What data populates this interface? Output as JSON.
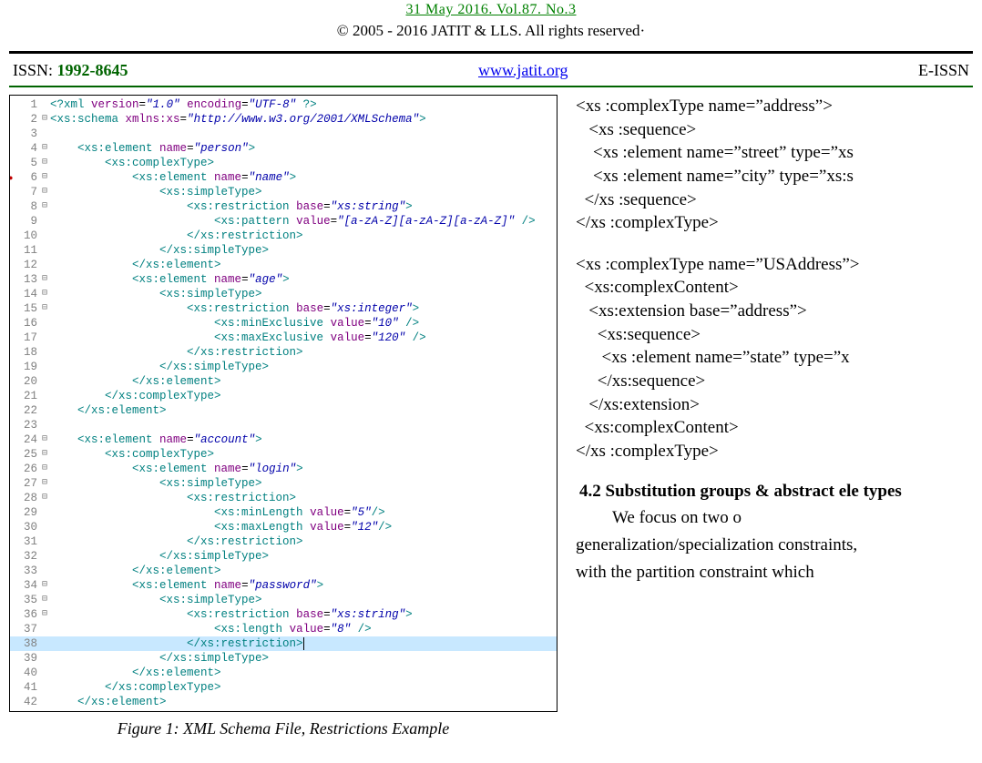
{
  "header": {
    "dateline": "31   May 2016. Vol.87. No.3",
    "copyright": "© 2005 - 2016 JATIT & LLS. All rights reserved·"
  },
  "info": {
    "issn_label": "ISSN:",
    "issn_value": "1992-8645",
    "link": "www.jatit.org",
    "eissn_label": "E-ISSN"
  },
  "code": {
    "caption": "Figure 1: XML Schema File, Restrictions Example",
    "highlight_line": 38,
    "breakpoints": [
      6
    ],
    "fold_lines": [
      2,
      4,
      5,
      6,
      7,
      8,
      13,
      14,
      15,
      24,
      25,
      26,
      27,
      28,
      34,
      35,
      36
    ],
    "lines": [
      {
        "n": 1,
        "seg": [
          [
            "decl",
            "<?xml"
          ],
          [
            " "
          ],
          [
            "attr",
            "version"
          ],
          [
            "=",
            ""
          ],
          [
            "str",
            "\"1.0\""
          ],
          [
            " "
          ],
          [
            "attr",
            "encoding"
          ],
          [
            "=",
            ""
          ],
          [
            "str",
            "\"UTF-8\""
          ],
          [
            " "
          ],
          [
            "decl",
            "?>"
          ]
        ]
      },
      {
        "n": 2,
        "seg": [
          [
            "tag",
            "<xs:schema"
          ],
          [
            " "
          ],
          [
            "attr",
            "xmlns:xs"
          ],
          [
            "=",
            ""
          ],
          [
            "str",
            "\"http://www.w3.org/2001/XMLSchema\""
          ],
          [
            "tag",
            ">"
          ]
        ]
      },
      {
        "n": 3,
        "seg": []
      },
      {
        "n": 4,
        "seg": [
          [
            "",
            "    "
          ],
          [
            "tag",
            "<xs:element"
          ],
          [
            " "
          ],
          [
            "attr",
            "name"
          ],
          [
            "=",
            ""
          ],
          [
            "str",
            "\"person\""
          ],
          [
            "tag",
            ">"
          ]
        ]
      },
      {
        "n": 5,
        "seg": [
          [
            "",
            "        "
          ],
          [
            "tag",
            "<xs:complexType>"
          ]
        ]
      },
      {
        "n": 6,
        "seg": [
          [
            "",
            "            "
          ],
          [
            "tag",
            "<xs:element"
          ],
          [
            " "
          ],
          [
            "attr",
            "name"
          ],
          [
            "=",
            ""
          ],
          [
            "str",
            "\"name\""
          ],
          [
            "tag",
            ">"
          ]
        ]
      },
      {
        "n": 7,
        "seg": [
          [
            "",
            "                "
          ],
          [
            "tag",
            "<xs:simpleType>"
          ]
        ]
      },
      {
        "n": 8,
        "seg": [
          [
            "",
            "                    "
          ],
          [
            "tag",
            "<xs:restriction"
          ],
          [
            " "
          ],
          [
            "attr",
            "base"
          ],
          [
            "=",
            ""
          ],
          [
            "str",
            "\"xs:string\""
          ],
          [
            "tag",
            ">"
          ]
        ]
      },
      {
        "n": 9,
        "seg": [
          [
            "",
            "                        "
          ],
          [
            "tag",
            "<xs:pattern"
          ],
          [
            " "
          ],
          [
            "attr",
            "value"
          ],
          [
            "=",
            ""
          ],
          [
            "str",
            "\"[a-zA-Z][a-zA-Z][a-zA-Z]\""
          ],
          [
            " "
          ],
          [
            "tag",
            "/>"
          ]
        ]
      },
      {
        "n": 10,
        "seg": [
          [
            "",
            "                    "
          ],
          [
            "tag",
            "</xs:restriction>"
          ]
        ]
      },
      {
        "n": 11,
        "seg": [
          [
            "",
            "                "
          ],
          [
            "tag",
            "</xs:simpleType>"
          ]
        ]
      },
      {
        "n": 12,
        "seg": [
          [
            "",
            "            "
          ],
          [
            "tag",
            "</xs:element>"
          ]
        ]
      },
      {
        "n": 13,
        "seg": [
          [
            "",
            "            "
          ],
          [
            "tag",
            "<xs:element"
          ],
          [
            " "
          ],
          [
            "attr",
            "name"
          ],
          [
            "=",
            ""
          ],
          [
            "str",
            "\"age\""
          ],
          [
            "tag",
            ">"
          ]
        ]
      },
      {
        "n": 14,
        "seg": [
          [
            "",
            "                "
          ],
          [
            "tag",
            "<xs:simpleType>"
          ]
        ]
      },
      {
        "n": 15,
        "seg": [
          [
            "",
            "                    "
          ],
          [
            "tag",
            "<xs:restriction"
          ],
          [
            " "
          ],
          [
            "attr",
            "base"
          ],
          [
            "=",
            ""
          ],
          [
            "str",
            "\"xs:integer\""
          ],
          [
            "tag",
            ">"
          ]
        ]
      },
      {
        "n": 16,
        "seg": [
          [
            "",
            "                        "
          ],
          [
            "tag",
            "<xs:minExclusive"
          ],
          [
            " "
          ],
          [
            "attr",
            "value"
          ],
          [
            "=",
            ""
          ],
          [
            "str",
            "\"10\""
          ],
          [
            " "
          ],
          [
            "tag",
            "/>"
          ]
        ]
      },
      {
        "n": 17,
        "seg": [
          [
            "",
            "                        "
          ],
          [
            "tag",
            "<xs:maxExclusive"
          ],
          [
            " "
          ],
          [
            "attr",
            "value"
          ],
          [
            "=",
            ""
          ],
          [
            "str",
            "\"120\""
          ],
          [
            " "
          ],
          [
            "tag",
            "/>"
          ]
        ]
      },
      {
        "n": 18,
        "seg": [
          [
            "",
            "                    "
          ],
          [
            "tag",
            "</xs:restriction>"
          ]
        ]
      },
      {
        "n": 19,
        "seg": [
          [
            "",
            "                "
          ],
          [
            "tag",
            "</xs:simpleType>"
          ]
        ]
      },
      {
        "n": 20,
        "seg": [
          [
            "",
            "            "
          ],
          [
            "tag",
            "</xs:element>"
          ]
        ]
      },
      {
        "n": 21,
        "seg": [
          [
            "",
            "        "
          ],
          [
            "tag",
            "</xs:complexType>"
          ]
        ]
      },
      {
        "n": 22,
        "seg": [
          [
            "",
            "    "
          ],
          [
            "tag",
            "</xs:element>"
          ]
        ]
      },
      {
        "n": 23,
        "seg": []
      },
      {
        "n": 24,
        "seg": [
          [
            "",
            "    "
          ],
          [
            "tag",
            "<xs:element"
          ],
          [
            " "
          ],
          [
            "attr",
            "name"
          ],
          [
            "=",
            ""
          ],
          [
            "str",
            "\"account\""
          ],
          [
            "tag",
            ">"
          ]
        ]
      },
      {
        "n": 25,
        "seg": [
          [
            "",
            "        "
          ],
          [
            "tag",
            "<xs:complexType>"
          ]
        ]
      },
      {
        "n": 26,
        "seg": [
          [
            "",
            "            "
          ],
          [
            "tag",
            "<xs:element"
          ],
          [
            " "
          ],
          [
            "attr",
            "name"
          ],
          [
            "=",
            ""
          ],
          [
            "str",
            "\"login\""
          ],
          [
            "tag",
            ">"
          ]
        ]
      },
      {
        "n": 27,
        "seg": [
          [
            "",
            "                "
          ],
          [
            "tag",
            "<xs:simpleType>"
          ]
        ]
      },
      {
        "n": 28,
        "seg": [
          [
            "",
            "                    "
          ],
          [
            "tag",
            "<xs:restriction>"
          ]
        ]
      },
      {
        "n": 29,
        "seg": [
          [
            "",
            "                        "
          ],
          [
            "tag",
            "<xs:minLength"
          ],
          [
            " "
          ],
          [
            "attr",
            "value"
          ],
          [
            "=",
            ""
          ],
          [
            "str",
            "\"5\""
          ],
          [
            "tag",
            "/>"
          ]
        ]
      },
      {
        "n": 30,
        "seg": [
          [
            "",
            "                        "
          ],
          [
            "tag",
            "<xs:maxLength"
          ],
          [
            " "
          ],
          [
            "attr",
            "value"
          ],
          [
            "=",
            ""
          ],
          [
            "str",
            "\"12\""
          ],
          [
            "tag",
            "/>"
          ]
        ]
      },
      {
        "n": 31,
        "seg": [
          [
            "",
            "                    "
          ],
          [
            "tag",
            "</xs:restriction>"
          ]
        ]
      },
      {
        "n": 32,
        "seg": [
          [
            "",
            "                "
          ],
          [
            "tag",
            "</xs:simpleType>"
          ]
        ]
      },
      {
        "n": 33,
        "seg": [
          [
            "",
            "            "
          ],
          [
            "tag",
            "</xs:element>"
          ]
        ]
      },
      {
        "n": 34,
        "seg": [
          [
            "",
            "            "
          ],
          [
            "tag",
            "<xs:element"
          ],
          [
            " "
          ],
          [
            "attr",
            "name"
          ],
          [
            "=",
            ""
          ],
          [
            "str",
            "\"password\""
          ],
          [
            "tag",
            ">"
          ]
        ]
      },
      {
        "n": 35,
        "seg": [
          [
            "",
            "                "
          ],
          [
            "tag",
            "<xs:simpleType>"
          ]
        ]
      },
      {
        "n": 36,
        "seg": [
          [
            "",
            "                    "
          ],
          [
            "tag",
            "<xs:restriction"
          ],
          [
            " "
          ],
          [
            "attr",
            "base"
          ],
          [
            "=",
            ""
          ],
          [
            "str",
            "\"xs:string\""
          ],
          [
            "tag",
            ">"
          ]
        ]
      },
      {
        "n": 37,
        "seg": [
          [
            "",
            "                        "
          ],
          [
            "tag",
            "<xs:length"
          ],
          [
            " "
          ],
          [
            "attr",
            "value"
          ],
          [
            "=",
            ""
          ],
          [
            "str",
            "\"8\""
          ],
          [
            " "
          ],
          [
            "tag",
            "/>"
          ]
        ]
      },
      {
        "n": 38,
        "seg": [
          [
            "",
            "                    "
          ],
          [
            "tag",
            "</xs:restriction>"
          ]
        ]
      },
      {
        "n": 39,
        "seg": [
          [
            "",
            "                "
          ],
          [
            "tag",
            "</xs:simpleType>"
          ]
        ]
      },
      {
        "n": 40,
        "seg": [
          [
            "",
            "            "
          ],
          [
            "tag",
            "</xs:element>"
          ]
        ]
      },
      {
        "n": 41,
        "seg": [
          [
            "",
            "        "
          ],
          [
            "tag",
            "</xs:complexType>"
          ]
        ]
      },
      {
        "n": 42,
        "seg": [
          [
            "",
            "    "
          ],
          [
            "tag",
            "</xs:element>"
          ]
        ]
      }
    ]
  },
  "rightcol": {
    "block1": [
      "<xs :complexType name=”address”>",
      "   <xs :sequence>",
      "    <xs :element name=”street” type=”xs",
      "    <xs :element name=”city” type=”xs:s",
      "  </xs :sequence>",
      "</xs :complexType>"
    ],
    "block2": [
      "<xs :complexType name=”USAddress”>",
      "  <xs:complexContent>",
      "   <xs:extension base=”address”>",
      "     <xs:sequence>",
      "      <xs :element name=”state” type=”x",
      "     </xs:sequence>",
      "   </xs:extension>",
      "  <xs:complexContent>",
      "</xs :complexType>"
    ],
    "section_head": "4.2  Substitution groups & abstract ele       types",
    "para1_line1": "We     focus     on     two     o",
    "para2": "generalization/specialization constraints,",
    "para3": "with   the   partition   constraint   which"
  }
}
